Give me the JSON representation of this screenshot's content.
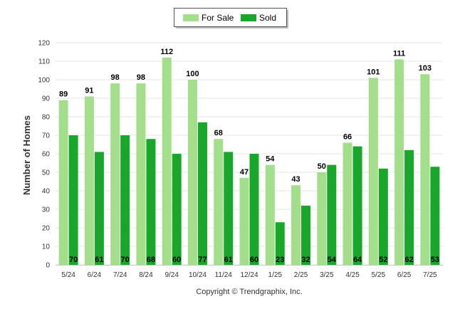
{
  "chart_data": {
    "type": "bar",
    "title": "",
    "xlabel": "",
    "ylabel": "Number of Homes",
    "ylim": [
      0,
      120
    ],
    "yticks": [
      0,
      10,
      20,
      30,
      40,
      50,
      60,
      70,
      80,
      90,
      100,
      110,
      120
    ],
    "grid": true,
    "legend_position": "top-center",
    "categories": [
      "5/24",
      "6/24",
      "7/24",
      "8/24",
      "9/24",
      "10/24",
      "11/24",
      "12/24",
      "1/25",
      "2/25",
      "3/25",
      "4/25",
      "5/25",
      "6/25",
      "7/25"
    ],
    "series": [
      {
        "name": "For Sale",
        "color": "#a3df8a",
        "label_position": "top",
        "values": [
          89,
          91,
          98,
          98,
          112,
          100,
          68,
          47,
          54,
          43,
          50,
          66,
          101,
          111,
          103
        ]
      },
      {
        "name": "Sold",
        "color": "#18a72a",
        "label_position": "inside-bottom",
        "values": [
          70,
          61,
          70,
          68,
          60,
          77,
          61,
          60,
          23,
          32,
          54,
          64,
          52,
          62,
          53
        ]
      }
    ],
    "credit": "Copyright © Trendgraphix, Inc."
  }
}
